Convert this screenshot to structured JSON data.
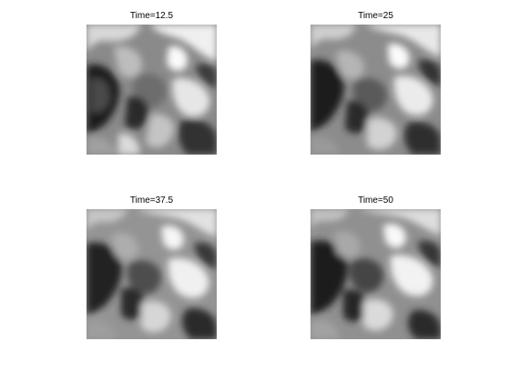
{
  "panels": [
    {
      "title": "Time=12.5"
    },
    {
      "title": "Time=25"
    },
    {
      "title": "Time=37.5"
    },
    {
      "title": "Time=50"
    }
  ],
  "image_colormap": "grayscale"
}
